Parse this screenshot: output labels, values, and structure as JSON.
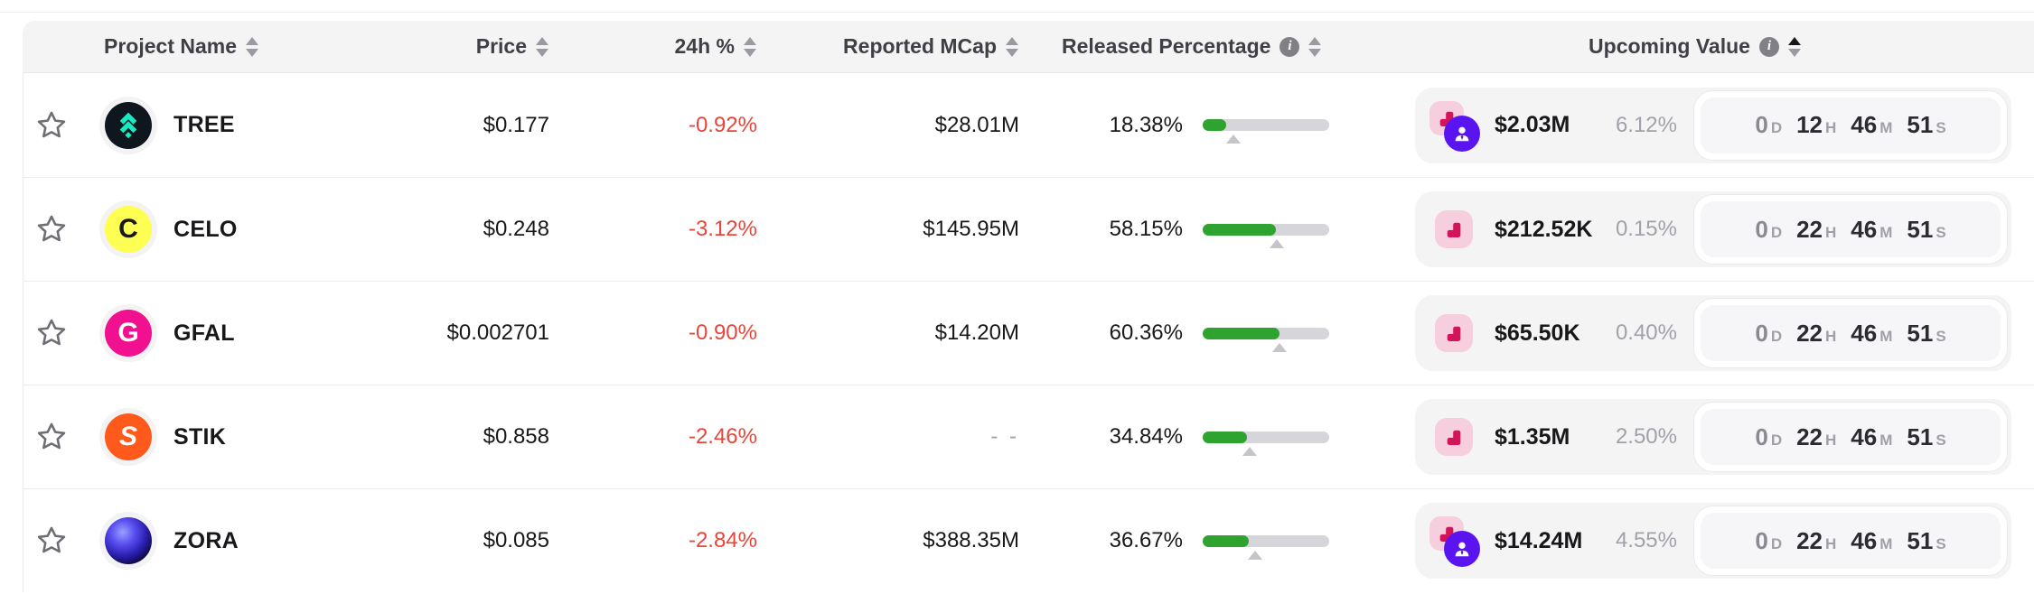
{
  "header": {
    "columns": [
      {
        "label": "Project Name",
        "sortable": true
      },
      {
        "label": "Price",
        "sortable": true
      },
      {
        "label": "24h %",
        "sortable": true
      },
      {
        "label": "Reported MCap",
        "sortable": true
      },
      {
        "label": "Released Percentage",
        "info": true,
        "sortable": true
      },
      {
        "label": "Upcoming Value",
        "info": true,
        "sortable": true,
        "sort": "asc"
      }
    ]
  },
  "colors": {
    "negative": "#e8463a",
    "progress_green": "#2fa32f",
    "badge_pink_bg": "#f6cede",
    "badge_pink_glyph": "#d4145a",
    "badge_purple": "#5a14ef",
    "header_bg": "#f4f4f5",
    "value_box_bg": "#f4f4f5"
  },
  "icons": {
    "star": "favorite-star-outline",
    "info": "info-circle",
    "sort": "sort-up-down-triangles",
    "badge_chart": "unlock-cliff-chart",
    "badge_person": "insider-person"
  },
  "rows": [
    {
      "name": "TREE",
      "logo": {
        "type": "tree",
        "bg": "#10161d",
        "glyph_color": "#17e9c0"
      },
      "price": "$0.177",
      "change": "-0.92%",
      "mcap": "$28.01M",
      "released": "18.38%",
      "released_num": 18.38,
      "marker_num": 24.5,
      "badges": [
        "chart",
        "person"
      ],
      "value": "$2.03M",
      "value_pct": "6.12%",
      "countdown": [
        {
          "v": "0",
          "u": "D",
          "dim": true
        },
        {
          "v": "12",
          "u": "H"
        },
        {
          "v": "46",
          "u": "M"
        },
        {
          "v": "51",
          "u": "S"
        }
      ]
    },
    {
      "name": "CELO",
      "logo": {
        "type": "letter",
        "letter": "C",
        "bg": "#fdff52",
        "fg": "#18181b"
      },
      "price": "$0.248",
      "change": "-3.12%",
      "mcap": "$145.95M",
      "released": "58.15%",
      "released_num": 58.15,
      "marker_num": 58.3,
      "badges": [
        "chart"
      ],
      "value": "$212.52K",
      "value_pct": "0.15%",
      "countdown": [
        {
          "v": "0",
          "u": "D",
          "dim": true
        },
        {
          "v": "22",
          "u": "H"
        },
        {
          "v": "46",
          "u": "M"
        },
        {
          "v": "51",
          "u": "S"
        }
      ]
    },
    {
      "name": "GFAL",
      "logo": {
        "type": "letter",
        "letter": "G",
        "bg": "#f01090",
        "fg": "#ffffff"
      },
      "price": "$0.002701",
      "change": "-0.90%",
      "mcap": "$14.20M",
      "released": "60.36%",
      "released_num": 60.36,
      "marker_num": 60.76,
      "badges": [
        "chart"
      ],
      "value": "$65.50K",
      "value_pct": "0.40%",
      "countdown": [
        {
          "v": "0",
          "u": "D",
          "dim": true
        },
        {
          "v": "22",
          "u": "H"
        },
        {
          "v": "46",
          "u": "M"
        },
        {
          "v": "51",
          "u": "S"
        }
      ]
    },
    {
      "name": "STIK",
      "logo": {
        "type": "letter",
        "letter": "S",
        "bg": "#ff5a1c",
        "fg": "#ffffff",
        "italic": true
      },
      "price": "$0.858",
      "change": "-2.46%",
      "mcap": "- -",
      "mcap_empty": true,
      "released": "34.84%",
      "released_num": 34.84,
      "marker_num": 37.34,
      "badges": [
        "chart"
      ],
      "value": "$1.35M",
      "value_pct": "2.50%",
      "countdown": [
        {
          "v": "0",
          "u": "D",
          "dim": true
        },
        {
          "v": "22",
          "u": "H"
        },
        {
          "v": "46",
          "u": "M"
        },
        {
          "v": "51",
          "u": "S"
        }
      ]
    },
    {
      "name": "ZORA",
      "logo": {
        "type": "orb"
      },
      "price": "$0.085",
      "change": "-2.84%",
      "mcap": "$388.35M",
      "released": "36.67%",
      "released_num": 36.67,
      "marker_num": 41.22,
      "badges": [
        "chart",
        "person"
      ],
      "value": "$14.24M",
      "value_pct": "4.55%",
      "countdown": [
        {
          "v": "0",
          "u": "D",
          "dim": true
        },
        {
          "v": "22",
          "u": "H"
        },
        {
          "v": "46",
          "u": "M"
        },
        {
          "v": "51",
          "u": "S"
        }
      ]
    }
  ]
}
